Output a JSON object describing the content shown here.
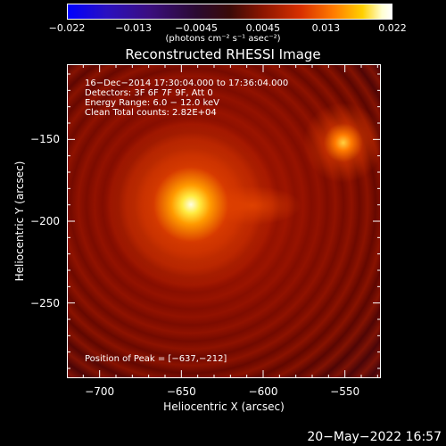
{
  "colorbar": {
    "tick_labels": [
      "−0.022",
      "−0.013",
      "−0.0045",
      "0.0045",
      "0.013",
      "0.022"
    ],
    "tick_values": [
      -0.022,
      -0.013,
      -0.0045,
      0.0045,
      0.013,
      0.022
    ],
    "range": [
      -0.022,
      0.022
    ],
    "unit_label": "(photons cm⁻² s⁻¹ asec⁻²)",
    "colormap": "blue-purple-red-yellow-white"
  },
  "chart_data": {
    "type": "heatmap",
    "title": "Reconstructed RHESSI Image",
    "xlabel": "Heliocentric X (arcsec)",
    "ylabel": "Heliocentric Y (arcsec)",
    "xlim": [
      -720,
      -528
    ],
    "ylim": [
      -296,
      -104
    ],
    "x_ticks": [
      -700,
      -650,
      -600,
      -550
    ],
    "x_tick_labels": [
      "−700",
      "−650",
      "−600",
      "−550"
    ],
    "y_ticks": [
      -250,
      -200,
      -150
    ],
    "y_tick_labels": [
      "−250",
      "−200",
      "−150"
    ],
    "sources": [
      {
        "x": -637,
        "y": -212,
        "intensity": 0.022
      },
      {
        "x": -552,
        "y": -154,
        "intensity": 0.012
      },
      {
        "x": -605,
        "y": -211,
        "intensity": 0.008
      }
    ],
    "info_lines": [
      "16−Dec−2014 17:30:04.000 to 17:36:04.000",
      "Detectors: 3F 6F 7F 9F, Att 0",
      "Energy Range: 6.0 − 12.0 keV",
      "Clean    Total counts: 2.82E+04"
    ],
    "peak_label": "Position of Peak = [−637,−212]"
  },
  "footer": {
    "date": "20−May−2022 16:57"
  },
  "colors": {
    "background": "#000000",
    "foreground": "#ffffff",
    "map_base": "#7a0800"
  }
}
